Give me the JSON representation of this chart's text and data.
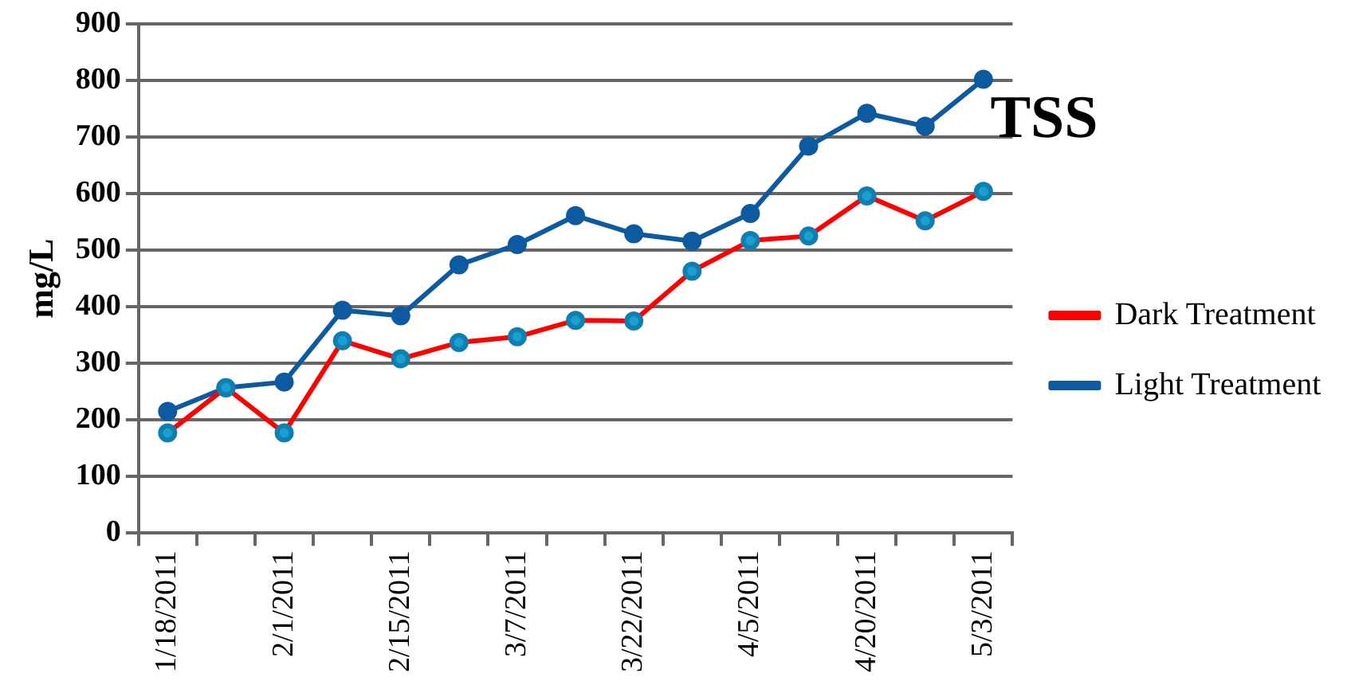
{
  "chart_data": {
    "type": "line",
    "title": "TSS",
    "ylabel": "mg/L",
    "categories": [
      "1/18/2011",
      null,
      "2/1/2011",
      null,
      "2/15/2011",
      null,
      "3/7/2011",
      null,
      "3/22/2011",
      null,
      "4/5/2011",
      null,
      "4/20/2011",
      null,
      "5/3/2011"
    ],
    "series": [
      {
        "name": "Light Treatment",
        "color": "#0d5aa0",
        "values": [
          215,
          257,
          267,
          394,
          384,
          474,
          510,
          561,
          529,
          516,
          565,
          684,
          742,
          719,
          802
        ]
      },
      {
        "name": "Dark Treatment",
        "color": "#ff0000",
        "values": [
          177,
          257,
          177,
          340,
          308,
          337,
          347,
          376,
          375,
          463,
          517,
          525,
          596,
          552,
          604
        ]
      }
    ],
    "ylim": [
      0,
      900
    ],
    "yticks": [
      0,
      100,
      200,
      300,
      400,
      500,
      600,
      700,
      800,
      900
    ],
    "grid": "y",
    "legend": "right",
    "marker": "circle",
    "line_style": "solid"
  }
}
